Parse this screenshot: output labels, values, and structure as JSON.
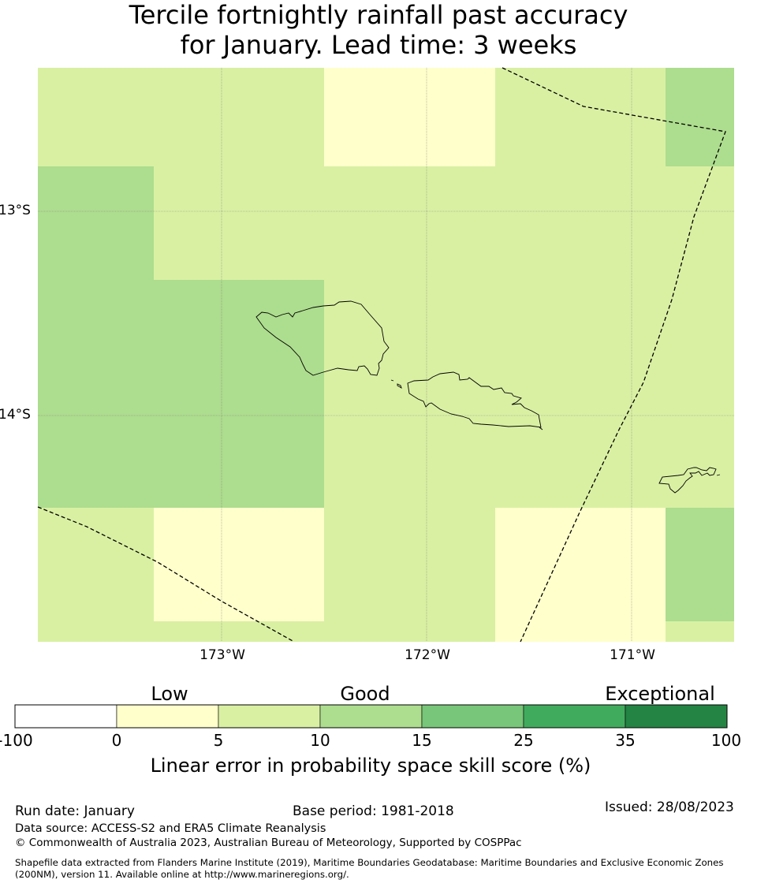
{
  "title": {
    "line1": "Tercile fortnightly rainfall past accuracy",
    "line2": "for January. Lead time: 3 weeks"
  },
  "map": {
    "lat_labels": [
      "13°S",
      "14°S"
    ],
    "lon_labels": [
      "173°W",
      "172°W",
      "171°W"
    ],
    "colors": {
      "low": "#ffffcc",
      "mid": "#d9f0a3",
      "good": "#addd8e"
    }
  },
  "colorbar": {
    "category_labels": [
      "Low",
      "Good",
      "Exceptional"
    ],
    "tick_labels": [
      "-100",
      "0",
      "5",
      "10",
      "15",
      "25",
      "35",
      "100"
    ],
    "colors": [
      "#ffffff",
      "#ffffcc",
      "#d9f0a3",
      "#addd8e",
      "#78c679",
      "#41ab5d",
      "#238443"
    ],
    "title": "Linear error in probability space skill score (%)"
  },
  "footer": {
    "run_date": "Run date: January",
    "base_period": "Base period: 1981-2018",
    "issued": "Issued: 28/08/2023",
    "data_source": "Data source: ACCESS-S2 and ERA5 Climate Reanalysis",
    "copyright": "© Commonwealth of Australia 2023, Australian Bureau of Meteorology, Supported by COSPPac",
    "shapefile_line1": "Shapefile data extracted from Flanders Marine Institute (2019), Maritime Boundaries Geodatabase: Maritime Boundaries and Exclusive Economic Zones",
    "shapefile_line2": "(200NM), version 11. Available online at http://www.marineregions.org/."
  }
}
